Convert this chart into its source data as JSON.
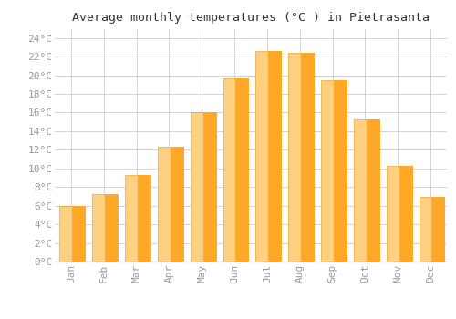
{
  "title": "Average monthly temperatures (°C ) in Pietrasanta",
  "months": [
    "Jan",
    "Feb",
    "Mar",
    "Apr",
    "May",
    "Jun",
    "Jul",
    "Aug",
    "Sep",
    "Oct",
    "Nov",
    "Dec"
  ],
  "values": [
    6.0,
    7.2,
    9.3,
    12.3,
    16.0,
    19.7,
    22.6,
    22.4,
    19.5,
    15.3,
    10.3,
    6.9
  ],
  "bar_color": "#FFA726",
  "bar_color_light": "#FFD080",
  "background_color": "#FFFFFF",
  "grid_color": "#CCCCCC",
  "ylim": [
    0,
    25
  ],
  "yticks": [
    0,
    2,
    4,
    6,
    8,
    10,
    12,
    14,
    16,
    18,
    20,
    22,
    24
  ],
  "title_fontsize": 9.5,
  "tick_fontsize": 8,
  "tick_label_color": "#999999",
  "title_color": "#333333"
}
